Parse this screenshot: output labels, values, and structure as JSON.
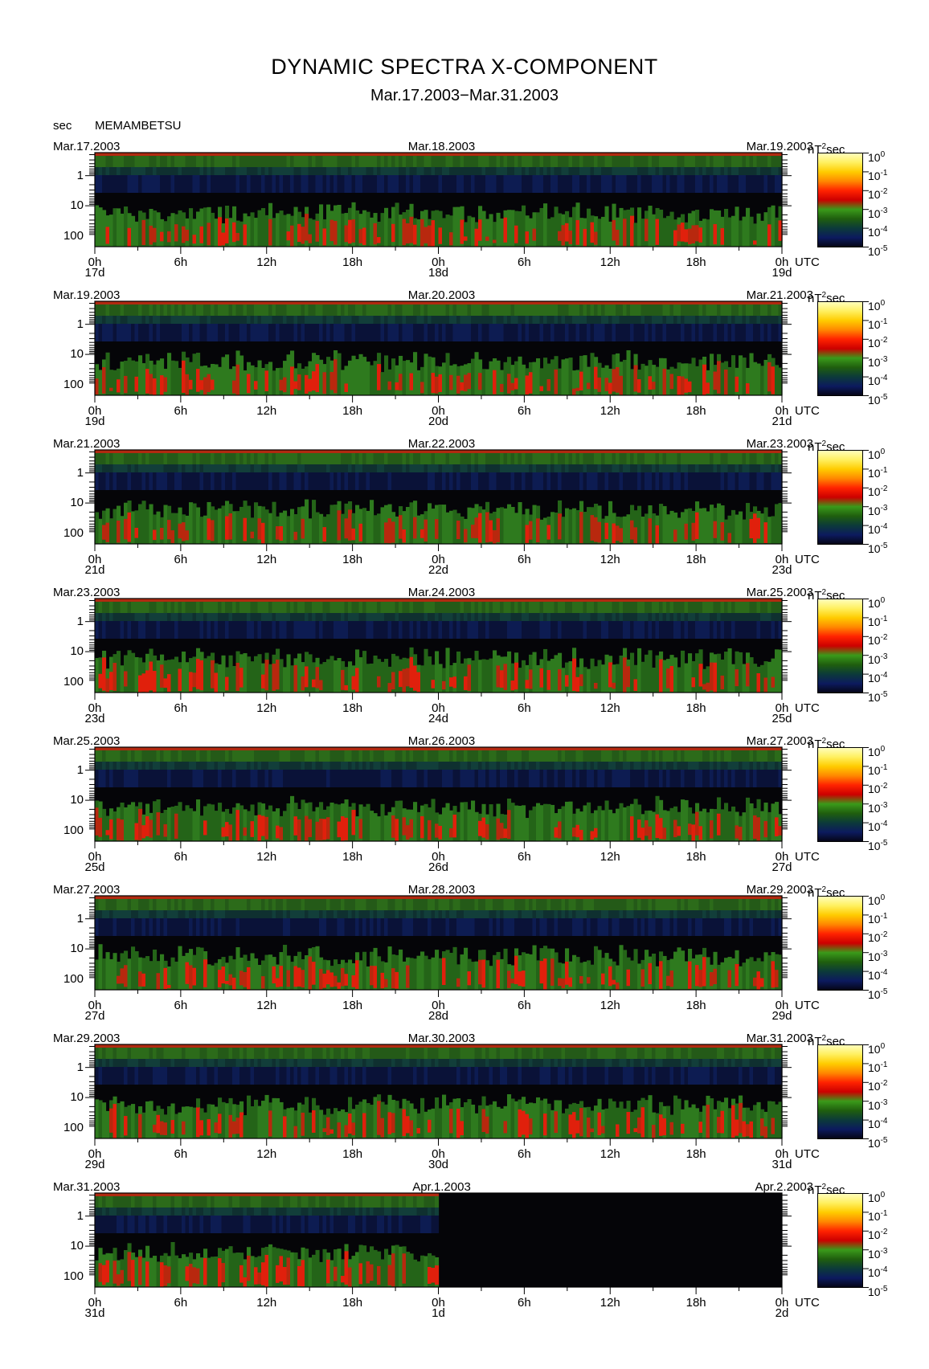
{
  "title": "DYNAMIC SPECTRA X-COMPONENT",
  "subtitle": "Mar.17.2003−Mar.31.2003",
  "y_unit_label": "sec",
  "station": "MEMAMBETSU",
  "colorbar": {
    "unit_label": "nT",
    "unit_sup": "2",
    "unit_suffix": "sec",
    "tick_base": "10",
    "tick_exponents": [
      "0",
      "-1",
      "-2",
      "-3",
      "-4",
      "-5"
    ],
    "colors": [
      "#ffffc0",
      "#fff060",
      "#ffcc00",
      "#ff8800",
      "#ff2200",
      "#cc0000",
      "#3a9a1a",
      "#1f5e0e",
      "#0c3a3a",
      "#0c1a5e",
      "#050514"
    ]
  },
  "chart_data": {
    "type": "heatmap",
    "x_tick_labels": [
      "0h",
      "6h",
      "12h",
      "18h",
      "0h",
      "6h",
      "12h",
      "18h",
      "0h"
    ],
    "x_unit": "UTC",
    "y_tick_labels": [
      "1",
      "10",
      "100"
    ],
    "y_scale": "log",
    "color_scale": "log",
    "color_range": [
      1e-05,
      1
    ],
    "panels": [
      {
        "start": "Mar.17.2003",
        "mid": "Mar.18.2003",
        "end": "Mar.19.2003",
        "day_labels": [
          "17d",
          "18d",
          "19d"
        ],
        "data_until": 1.0
      },
      {
        "start": "Mar.19.2003",
        "mid": "Mar.20.2003",
        "end": "Mar.21.2003",
        "day_labels": [
          "19d",
          "20d",
          "21d"
        ],
        "data_until": 1.0
      },
      {
        "start": "Mar.21.2003",
        "mid": "Mar.22.2003",
        "end": "Mar.23.2003",
        "day_labels": [
          "21d",
          "22d",
          "23d"
        ],
        "data_until": 1.0
      },
      {
        "start": "Mar.23.2003",
        "mid": "Mar.24.2003",
        "end": "Mar.25.2003",
        "day_labels": [
          "23d",
          "24d",
          "25d"
        ],
        "data_until": 1.0
      },
      {
        "start": "Mar.25.2003",
        "mid": "Mar.26.2003",
        "end": "Mar.27.2003",
        "day_labels": [
          "25d",
          "26d",
          "27d"
        ],
        "data_until": 1.0
      },
      {
        "start": "Mar.27.2003",
        "mid": "Mar.28.2003",
        "end": "Mar.29.2003",
        "day_labels": [
          "27d",
          "28d",
          "29d"
        ],
        "data_until": 1.0
      },
      {
        "start": "Mar.29.2003",
        "mid": "Mar.30.2003",
        "end": "Mar.31.2003",
        "day_labels": [
          "29d",
          "30d",
          "31d"
        ],
        "data_until": 1.0
      },
      {
        "start": "Mar.31.2003",
        "mid": "Apr.1.2003",
        "end": "Apr.2.2003",
        "day_labels": [
          "31d",
          "1d",
          "2d"
        ],
        "data_until": 0.5
      }
    ]
  }
}
